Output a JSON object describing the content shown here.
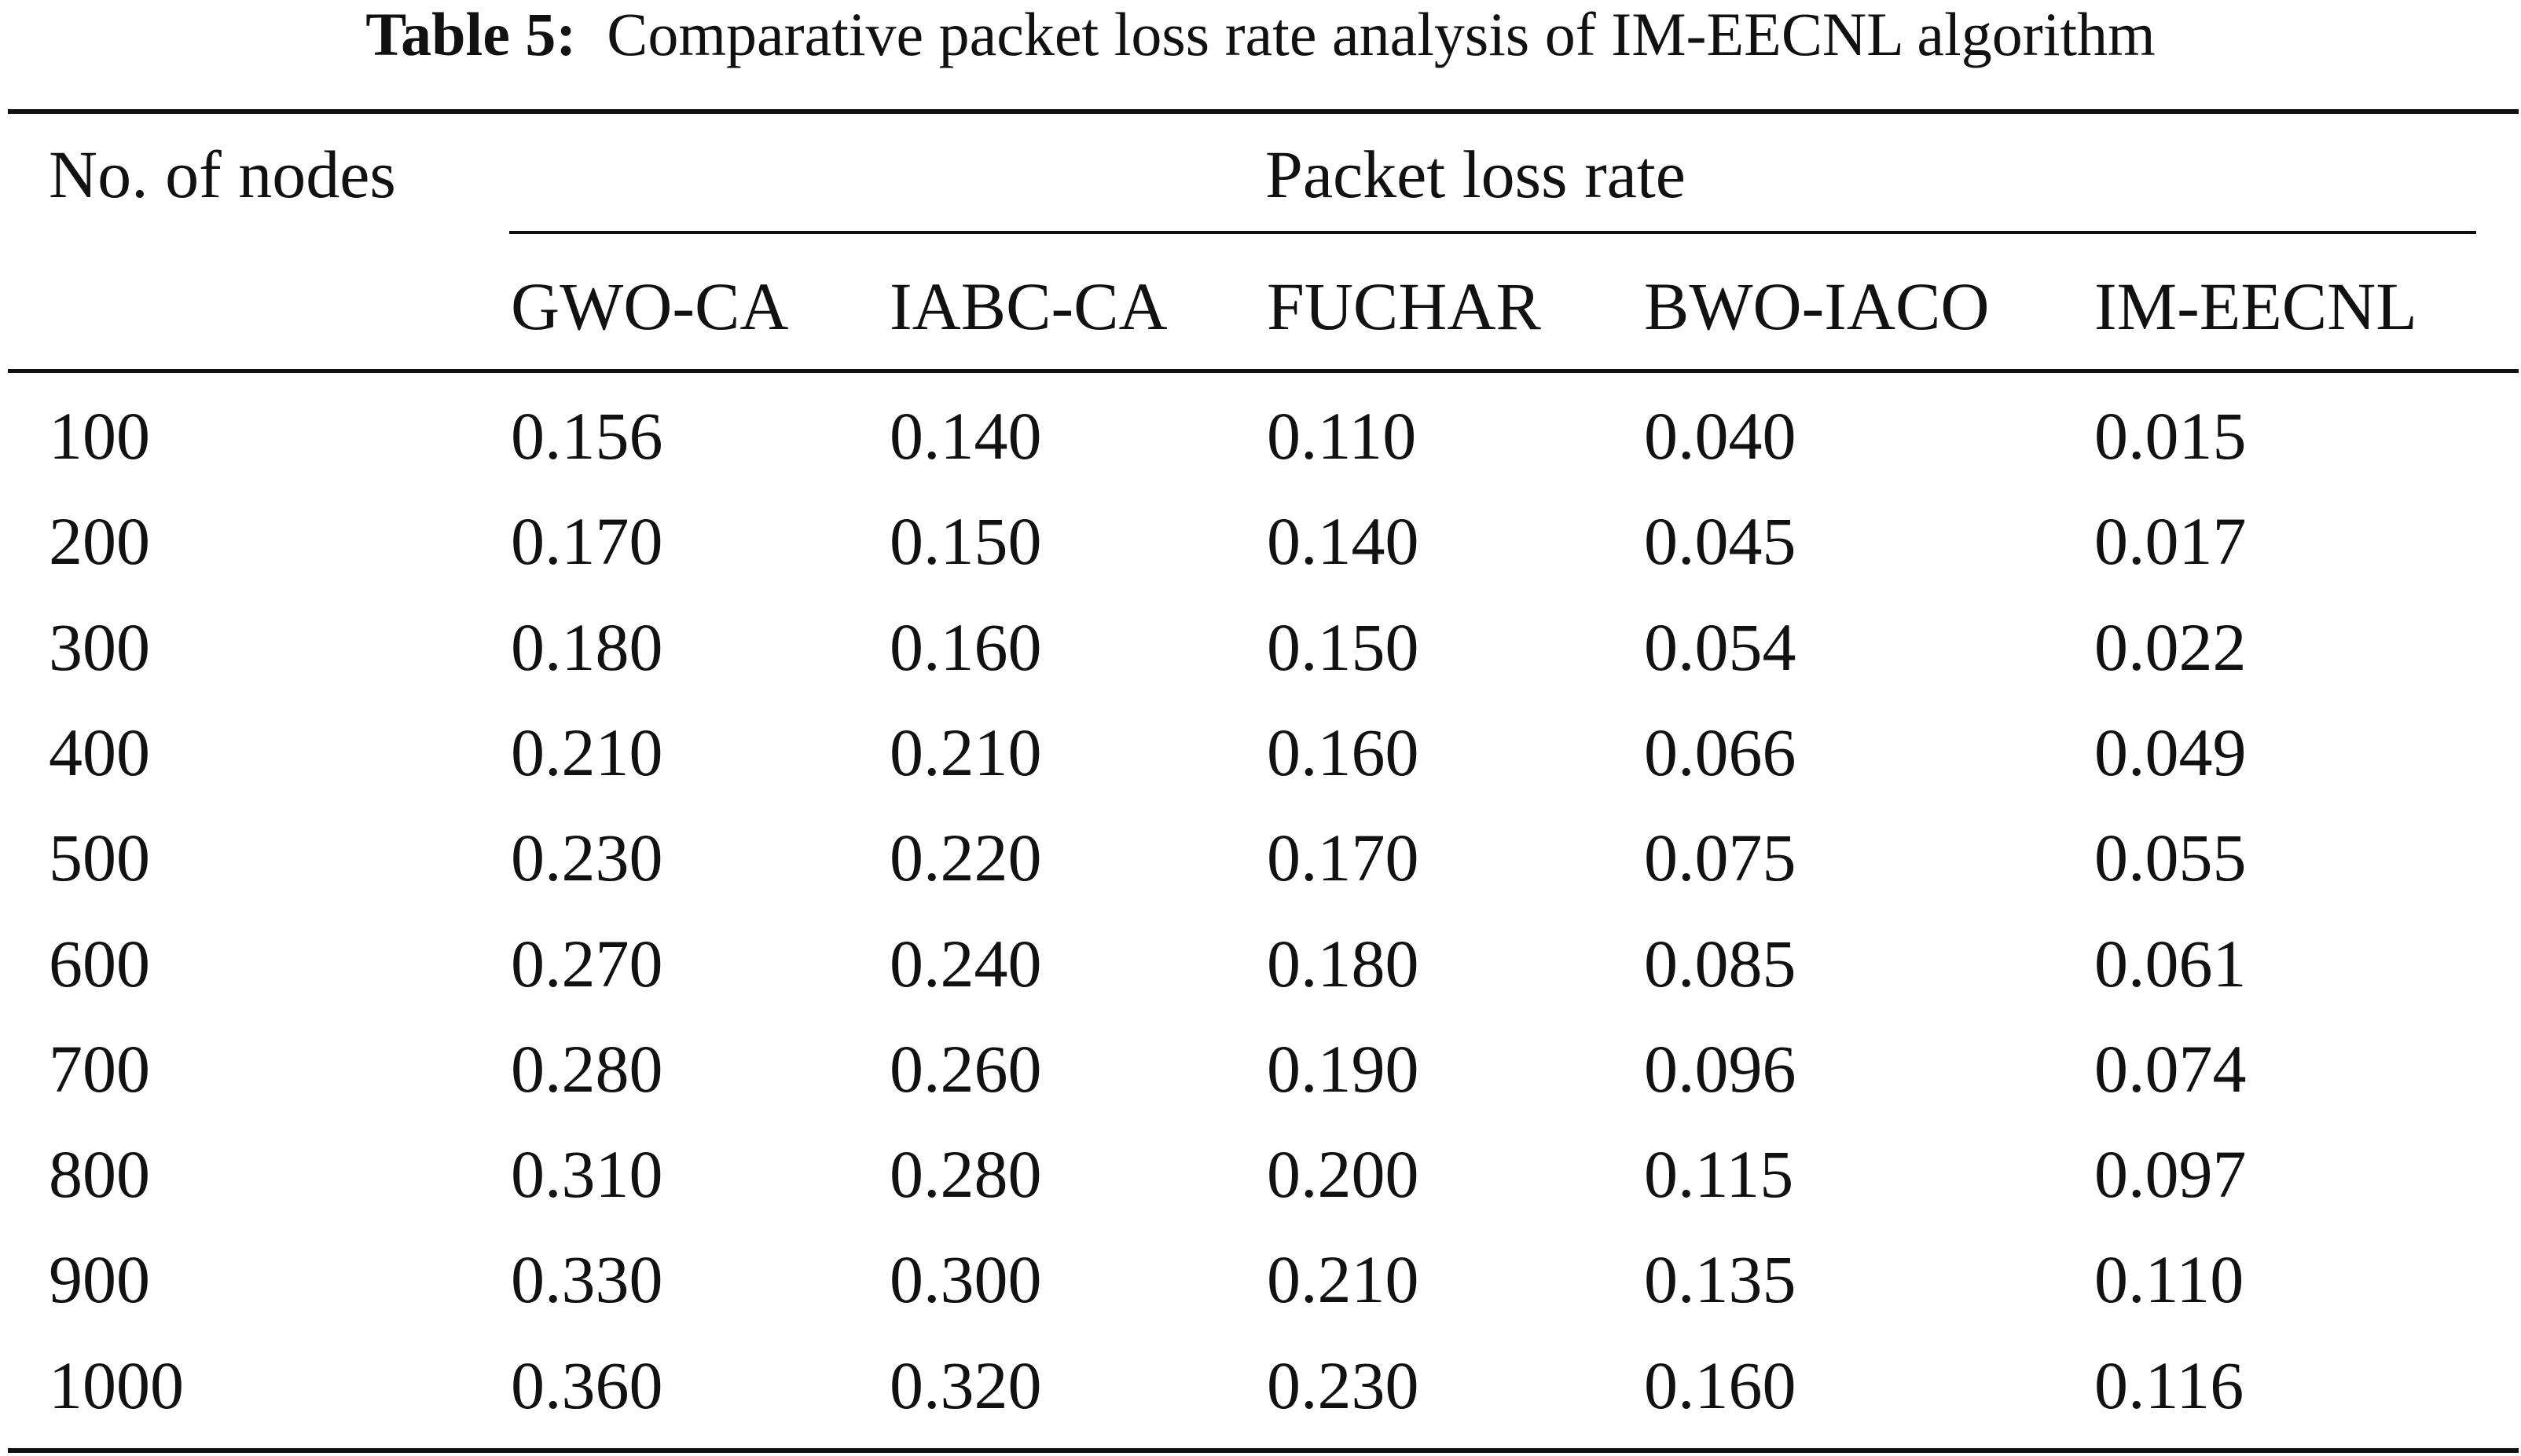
{
  "caption": {
    "label": "Table 5:",
    "text": "Comparative packet loss rate analysis of IM-EECNL algorithm"
  },
  "table": {
    "row_header": "No. of nodes",
    "group_header": "Packet loss rate",
    "columns": [
      "GWO-CA",
      "IABC-CA",
      "FUCHAR",
      "BWO-IACO",
      "IM-EECNL"
    ],
    "rows": [
      {
        "nodes": "100",
        "values": [
          "0.156",
          "0.140",
          "0.110",
          "0.040",
          "0.015"
        ]
      },
      {
        "nodes": "200",
        "values": [
          "0.170",
          "0.150",
          "0.140",
          "0.045",
          "0.017"
        ]
      },
      {
        "nodes": "300",
        "values": [
          "0.180",
          "0.160",
          "0.150",
          "0.054",
          "0.022"
        ]
      },
      {
        "nodes": "400",
        "values": [
          "0.210",
          "0.210",
          "0.160",
          "0.066",
          "0.049"
        ]
      },
      {
        "nodes": "500",
        "values": [
          "0.230",
          "0.220",
          "0.170",
          "0.075",
          "0.055"
        ]
      },
      {
        "nodes": "600",
        "values": [
          "0.270",
          "0.240",
          "0.180",
          "0.085",
          "0.061"
        ]
      },
      {
        "nodes": "700",
        "values": [
          "0.280",
          "0.260",
          "0.190",
          "0.096",
          "0.074"
        ]
      },
      {
        "nodes": "800",
        "values": [
          "0.310",
          "0.280",
          "0.200",
          "0.115",
          "0.097"
        ]
      },
      {
        "nodes": "900",
        "values": [
          "0.330",
          "0.300",
          "0.210",
          "0.135",
          "0.110"
        ]
      },
      {
        "nodes": "1000",
        "values": [
          "0.360",
          "0.320",
          "0.230",
          "0.160",
          "0.116"
        ]
      }
    ]
  }
}
